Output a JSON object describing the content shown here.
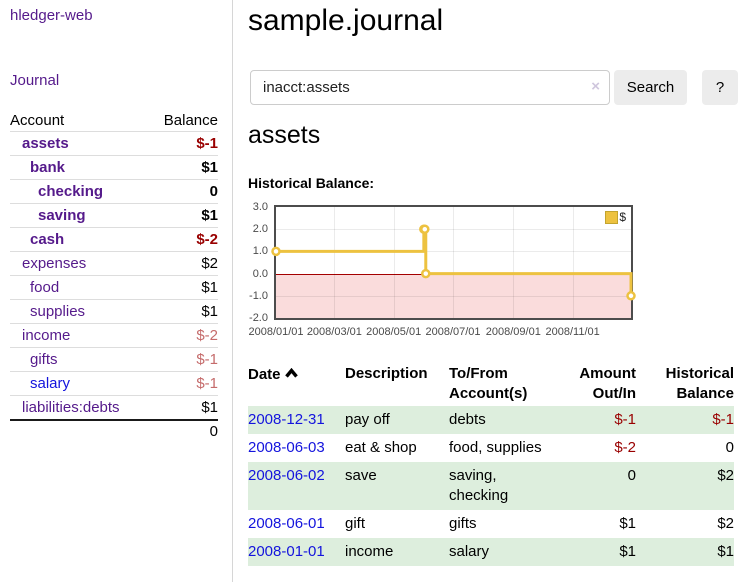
{
  "colors": {
    "purple": "#551a8b",
    "blue": "#1414dd",
    "neg_strong": "#990000",
    "neg_soft": "#c56b6b",
    "gold": "#edc240",
    "pink": "#fadcdc",
    "zero_line": "#a40000",
    "stripe": "#ddeedd",
    "btn_bg": "#ececec"
  },
  "app": {
    "title": "hledger-web"
  },
  "sidebar": {
    "journal_link": "Journal",
    "accounts": {
      "header_account": "Account",
      "header_balance": "Balance",
      "rows": [
        {
          "name": "assets",
          "balance": "$-1",
          "depth": 1,
          "bold": true,
          "balance_class": "neg-strong",
          "name_class": ""
        },
        {
          "name": "bank",
          "balance": "$1",
          "depth": 2,
          "bold": true,
          "balance_class": "",
          "name_class": ""
        },
        {
          "name": "checking",
          "balance": "0",
          "depth": 3,
          "bold": true,
          "balance_class": "",
          "name_class": ""
        },
        {
          "name": "saving",
          "balance": "$1",
          "depth": 3,
          "bold": true,
          "balance_class": "",
          "name_class": ""
        },
        {
          "name": "cash",
          "balance": "$-2",
          "depth": 2,
          "bold": true,
          "balance_class": "neg-strong",
          "name_class": ""
        },
        {
          "name": "expenses",
          "balance": "$2",
          "depth": 1,
          "bold": false,
          "balance_class": "",
          "name_class": ""
        },
        {
          "name": "food",
          "balance": "$1",
          "depth": 2,
          "bold": false,
          "balance_class": "",
          "name_class": ""
        },
        {
          "name": "supplies",
          "balance": "$1",
          "depth": 2,
          "bold": false,
          "balance_class": "",
          "name_class": ""
        },
        {
          "name": "income",
          "balance": "$-2",
          "depth": 1,
          "bold": false,
          "balance_class": "neg-soft",
          "name_class": ""
        },
        {
          "name": "gifts",
          "balance": "$-1",
          "depth": 2,
          "bold": false,
          "balance_class": "neg-soft",
          "name_class": ""
        },
        {
          "name": "salary",
          "balance": "$-1",
          "depth": 2,
          "bold": false,
          "balance_class": "neg-soft",
          "name_class": "blue"
        },
        {
          "name": "liabilities:debts",
          "balance": "$1",
          "depth": 1,
          "bold": false,
          "balance_class": "",
          "name_class": ""
        }
      ],
      "total": "0"
    }
  },
  "header": {
    "title": "sample.journal"
  },
  "search": {
    "value": "inacct:assets",
    "clear_icon": "×",
    "button_label": "Search",
    "help_label": "?"
  },
  "account_page": {
    "title": "assets",
    "chart_label": "Historical Balance:"
  },
  "chart_data": {
    "type": "line",
    "title": "Historical Balance:",
    "step": true,
    "legend": {
      "label": "$",
      "position": "top-right"
    },
    "ylim": [
      -2.0,
      3.0
    ],
    "yticks": [
      "3.0",
      "2.0",
      "1.0",
      "0.0",
      "-1.0",
      "-2.0"
    ],
    "ytick_values": [
      3,
      2,
      1,
      0,
      -1,
      -2
    ],
    "xticks": [
      {
        "label": "2008/01/01",
        "day": 0
      },
      {
        "label": "2008/03/01",
        "day": 60
      },
      {
        "label": "2008/05/01",
        "day": 121
      },
      {
        "label": "2008/07/01",
        "day": 182
      },
      {
        "label": "2008/09/01",
        "day": 244
      },
      {
        "label": "2008/11/01",
        "day": 305
      }
    ],
    "x_span_days": 365,
    "series": [
      {
        "name": "$",
        "points": [
          {
            "date": "2008-01-01",
            "day": 0,
            "value": 1
          },
          {
            "date": "2008-06-01",
            "day": 152,
            "value": 2
          },
          {
            "date": "2008-06-02",
            "day": 153,
            "value": 2
          },
          {
            "date": "2008-06-03",
            "day": 154,
            "value": 0
          },
          {
            "date": "2008-12-31",
            "day": 365,
            "value": -1
          }
        ]
      }
    ],
    "grid": true,
    "negative_region": true
  },
  "register_table": {
    "headers": [
      {
        "label": "Date",
        "align": "left",
        "sorted": true
      },
      {
        "label": "Description",
        "align": "left",
        "sorted": false
      },
      {
        "label": "To/From\nAccount(s)",
        "align": "left",
        "sorted": false
      },
      {
        "label": "Amount\nOut/In",
        "align": "right",
        "sorted": false
      },
      {
        "label": "Historical\nBalance",
        "align": "right",
        "sorted": false
      }
    ],
    "rows": [
      {
        "date": "2008-12-31",
        "description": "pay off",
        "accounts": "debts",
        "amount": "$-1",
        "balance": "$-1",
        "amount_neg": true,
        "balance_neg": true
      },
      {
        "date": "2008-06-03",
        "description": "eat & shop",
        "accounts": "food, supplies",
        "amount": "$-2",
        "balance": "0",
        "amount_neg": true,
        "balance_neg": false
      },
      {
        "date": "2008-06-02",
        "description": "save",
        "accounts": "saving,\nchecking",
        "amount": "0",
        "balance": "$2",
        "amount_neg": false,
        "balance_neg": false
      },
      {
        "date": "2008-06-01",
        "description": "gift",
        "accounts": "gifts",
        "amount": "$1",
        "balance": "$2",
        "amount_neg": false,
        "balance_neg": false
      },
      {
        "date": "2008-01-01",
        "description": "income",
        "accounts": "salary",
        "amount": "$1",
        "balance": "$1",
        "amount_neg": false,
        "balance_neg": false
      }
    ]
  }
}
